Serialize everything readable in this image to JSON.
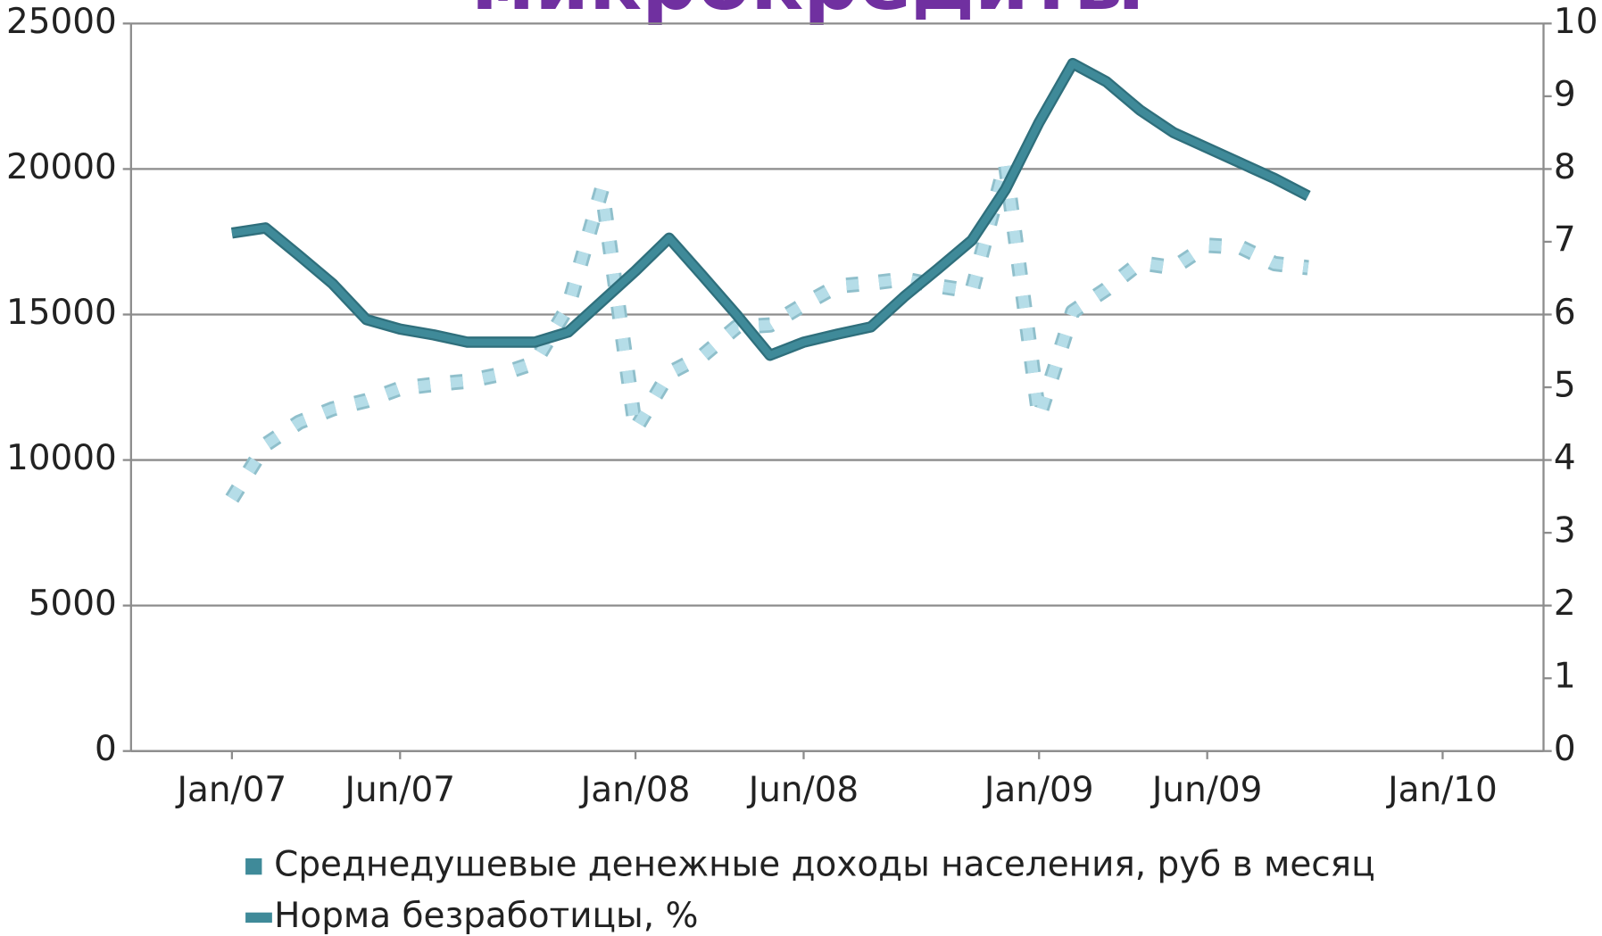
{
  "chart_data": {
    "type": "line",
    "title": "микрокредиты",
    "x": [
      "2007-01",
      "2007-02",
      "2007-03",
      "2007-04",
      "2007-05",
      "2007-06",
      "2007-07",
      "2007-08",
      "2007-09",
      "2007-10",
      "2007-11",
      "2007-12",
      "2008-01",
      "2008-02",
      "2008-03",
      "2008-04",
      "2008-05",
      "2008-06",
      "2008-07",
      "2008-08",
      "2008-09",
      "2008-10",
      "2008-11",
      "2008-12",
      "2009-01",
      "2009-02",
      "2009-03",
      "2009-04",
      "2009-05",
      "2009-06",
      "2009-07",
      "2009-08",
      "2009-09"
    ],
    "xlim": [
      "2006-10",
      "2010-04"
    ],
    "xticks": [
      {
        "value": "2007-01",
        "label": "Jan/07"
      },
      {
        "value": "2007-06",
        "label": "Jun/07"
      },
      {
        "value": "2008-01",
        "label": "Jan/08"
      },
      {
        "value": "2008-06",
        "label": "Jun/08"
      },
      {
        "value": "2009-01",
        "label": "Jan/09"
      },
      {
        "value": "2009-06",
        "label": "Jun/09"
      },
      {
        "value": "2010-01",
        "label": "Jan/10"
      }
    ],
    "ylim": [
      0,
      25000
    ],
    "yticks": [
      0,
      5000,
      10000,
      15000,
      20000,
      25000
    ],
    "y2lim": [
      0,
      10
    ],
    "y2ticks": [
      0,
      1,
      2,
      3,
      4,
      5,
      6,
      7,
      8,
      9,
      10
    ],
    "grid": true,
    "legend": "bottom",
    "series": [
      {
        "name": "Среднедушевые денежные доходы населения, руб в месяц",
        "color": "#b5dde8",
        "style": "dotted",
        "values": [
          8670,
          10530,
          11300,
          11760,
          12040,
          12460,
          12600,
          12710,
          12950,
          13340,
          15270,
          19310,
          11060,
          12990,
          13590,
          14570,
          14640,
          15340,
          15980,
          16080,
          16220,
          15980,
          15800,
          20190,
          11480,
          15100,
          15870,
          16780,
          16610,
          17380,
          17310,
          16750,
          16610
        ]
      },
      {
        "name": "Норма безработицы, %",
        "color": "#3f8a99",
        "axis": "y2",
        "values": [
          7.12,
          7.19,
          6.81,
          6.42,
          5.93,
          5.8,
          5.72,
          5.62,
          5.62,
          5.62,
          5.76,
          6.18,
          6.6,
          7.05,
          6.53,
          6.0,
          5.44,
          5.62,
          5.73,
          5.83,
          6.25,
          6.63,
          7.02,
          7.72,
          8.64,
          9.45,
          9.2,
          8.81,
          8.5,
          8.29,
          8.08,
          7.87,
          7.63
        ]
      }
    ]
  }
}
